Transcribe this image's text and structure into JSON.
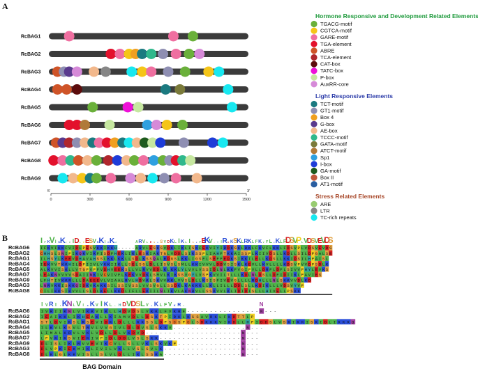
{
  "panel_a_label": "A",
  "panel_b_label": "B",
  "axis": {
    "start_label": "5'",
    "end_label": "3'",
    "ticks": [
      "0",
      "300",
      "600",
      "900",
      "1200",
      "1500"
    ],
    "tick_values": [
      0,
      300,
      600,
      900,
      1200,
      1500
    ],
    "max": 1500
  },
  "element_colors": {
    "TGACG-motif": "#6ab03a",
    "CGTCA-motif": "#f5c518",
    "GARE-motif": "#ef6fa0",
    "TGA-element": "#e3112c",
    "ABRE": "#cf5428",
    "TCA-element": "#b0272d",
    "CAT-box": "#5c0c0c",
    "TATC-box": "#ee10d8",
    "P-box": "#c6e7a0",
    "AuxRR-core": "#d68ad8",
    "TCT-motif": "#1b7a80",
    "GT1-motif": "#8e8eb2",
    "Box 4": "#f0a020",
    "G-box": "#5a3a8e",
    "AE-box": "#f2b88c",
    "TCCC-motif": "#30b88c",
    "GATA-motif": "#7a7a3a",
    "ATCT-motif": "#b07a3a",
    "Sp1": "#2ea0e0",
    "I-box": "#1e3cd8",
    "GA-motif": "#1e5a1e",
    "Box II": "#c0573a",
    "AT1-motif": "#2a5ea0",
    "ARE": "#98cc70",
    "LTR": "#868686",
    "TC-rich repeats": "#18e8f0"
  },
  "legend": [
    {
      "title": "Hormone Responsive and Development Related Elements",
      "title_color": "#1e9a3c",
      "items": [
        "TGACG-motif",
        "CGTCA-motif",
        "GARE-motif",
        "TGA-element",
        "ABRE",
        "TCA-element",
        "CAT-box",
        "TATC-box",
        "P-box",
        "AuxRR-core"
      ]
    },
    {
      "title": "Light Responsive Elements",
      "title_color": "#2a3aa8",
      "items": [
        "TCT-motif",
        "GT1-motif",
        "Box 4",
        "G-box",
        "AE-box",
        "TCCC-motif",
        "GATA-motif",
        "ATCT-motif",
        "Sp1",
        "I-box",
        "GA-motif",
        "Box II",
        "AT1-motif"
      ]
    },
    {
      "title": "Stress Related Elements",
      "title_color": "#a8482a",
      "items": [
        "ARE",
        "LTR",
        "TC-rich repeats"
      ]
    }
  ],
  "genes": [
    {
      "name": "RcBAG1",
      "elements": [
        [
          140,
          "GARE-motif"
        ],
        [
          940,
          "GARE-motif"
        ],
        [
          1090,
          "TGACG-motif"
        ]
      ]
    },
    {
      "name": "RcBAG2",
      "elements": [
        [
          460,
          "TGA-element"
        ],
        [
          530,
          "GARE-motif"
        ],
        [
          600,
          "CGTCA-motif"
        ],
        [
          650,
          "Box 4"
        ],
        [
          700,
          "TCT-motif"
        ],
        [
          770,
          "TCCC-motif"
        ],
        [
          860,
          "GT1-motif"
        ],
        [
          960,
          "GARE-motif"
        ],
        [
          1060,
          "TGACG-motif"
        ],
        [
          1140,
          "AuxRR-core"
        ]
      ]
    },
    {
      "name": "RcBAG3",
      "elements": [
        [
          50,
          "ABRE"
        ],
        [
          100,
          "GT1-motif"
        ],
        [
          140,
          "G-box"
        ],
        [
          200,
          "AuxRR-core"
        ],
        [
          330,
          "AE-box"
        ],
        [
          420,
          "LTR"
        ],
        [
          620,
          "TC-rich repeats"
        ],
        [
          700,
          "CGTCA-motif"
        ],
        [
          770,
          "GARE-motif"
        ],
        [
          900,
          "GT1-motif"
        ],
        [
          1030,
          "TGACG-motif"
        ],
        [
          1210,
          "CGTCA-motif"
        ],
        [
          1290,
          "TC-rich repeats"
        ]
      ]
    },
    {
      "name": "RcBAG4",
      "elements": [
        [
          50,
          "ABRE"
        ],
        [
          120,
          "ABRE"
        ],
        [
          200,
          "CAT-box"
        ],
        [
          880,
          "TCT-motif"
        ],
        [
          990,
          "GATA-motif"
        ],
        [
          1360,
          "TC-rich repeats"
        ]
      ]
    },
    {
      "name": "RcBAG5",
      "elements": [
        [
          320,
          "TGACG-motif"
        ],
        [
          590,
          "TATC-box"
        ],
        [
          670,
          "P-box"
        ],
        [
          1390,
          "TC-rich repeats"
        ]
      ]
    },
    {
      "name": "RcBAG6",
      "elements": [
        [
          140,
          "TGA-element"
        ],
        [
          200,
          "TGA-element"
        ],
        [
          260,
          "ATCT-motif"
        ],
        [
          450,
          "P-box"
        ],
        [
          740,
          "Sp1"
        ],
        [
          810,
          "AuxRR-core"
        ],
        [
          890,
          "CGTCA-motif"
        ],
        [
          1010,
          "TGACG-motif"
        ]
      ]
    },
    {
      "name": "RcBAG7",
      "elements": [
        [
          40,
          "ABRE"
        ],
        [
          90,
          "G-box"
        ],
        [
          140,
          "TCA-element"
        ],
        [
          200,
          "GT1-motif"
        ],
        [
          260,
          "AE-box"
        ],
        [
          320,
          "TCT-motif"
        ],
        [
          370,
          "GARE-motif"
        ],
        [
          430,
          "TGA-element"
        ],
        [
          490,
          "Box 4"
        ],
        [
          550,
          "TCT-motif"
        ],
        [
          600,
          "TC-rich repeats"
        ],
        [
          660,
          "AE-box"
        ],
        [
          720,
          "GA-motif"
        ],
        [
          780,
          "P-box"
        ],
        [
          840,
          "I-box"
        ],
        [
          1020,
          "GT1-motif"
        ],
        [
          1240,
          "I-box"
        ],
        [
          1320,
          "TC-rich repeats"
        ]
      ]
    },
    {
      "name": "RcBAG8",
      "elements": [
        [
          20,
          "TGA-element"
        ],
        [
          90,
          "GARE-motif"
        ],
        [
          150,
          "TCCC-motif"
        ],
        [
          210,
          "ABRE"
        ],
        [
          280,
          "AE-box"
        ],
        [
          350,
          "TGACG-motif"
        ],
        [
          440,
          "TCA-element"
        ],
        [
          510,
          "I-box"
        ],
        [
          580,
          "AE-box"
        ],
        [
          640,
          "TGACG-motif"
        ],
        [
          710,
          "GARE-motif"
        ],
        [
          790,
          "Sp1"
        ],
        [
          860,
          "TGACG-motif"
        ],
        [
          910,
          "GT1-motif"
        ],
        [
          960,
          "TGA-element"
        ],
        [
          1010,
          "TCCC-motif"
        ],
        [
          1070,
          "P-box"
        ]
      ]
    },
    {
      "name": "RcBAG9",
      "elements": [
        [
          90,
          "TC-rich repeats"
        ],
        [
          170,
          "AE-box"
        ],
        [
          240,
          "CGTCA-motif"
        ],
        [
          300,
          "TCT-motif"
        ],
        [
          350,
          "TGACG-motif"
        ],
        [
          460,
          "GARE-motif"
        ],
        [
          610,
          "AuxRR-core"
        ],
        [
          690,
          "AE-box"
        ],
        [
          780,
          "TC-rich repeats"
        ],
        [
          870,
          "GT1-motif"
        ],
        [
          960,
          "GARE-motif"
        ],
        [
          1120,
          "AE-box"
        ]
      ]
    }
  ],
  "alignment_block1": {
    "labels": [
      "RcBAG6",
      "RcBAG2",
      "RcBAG1",
      "RcBAG4",
      "RcBAG5",
      "RcBAG7",
      "RcBAG9",
      "RcBAG3",
      "RcBAG8"
    ],
    "rows": [
      "IFKVIKKFVIDLPESVKKIKKH-----ARVLESKSVDKLIKLISKFEKVIYIRDKSKLRKLFKVFLKKLFDSVPLVDSVEVDS",
      "CHHSLSNIPIKQKVIKFISDFHEKLIKLESKIAKTGLVDDLSIKSSPLIAHFTKKAISSPLKIIVDSLLKDLLSILDPGALSE",
      "ILHSYLKEEVDHAVAHSSLKKLKKLLSDLKSSQALRDGSLKKLIGSFLSEFFEDKSIKKILELLKDSLLKKIDSILHPAISL",
      "IEKVVTKKHILDPIIVLYKKIIKLLSELSGLDLLISVSLSMLLKKIVVVLDDVSISKLKEVLLKVLLLLKDSVPVVDPSDLK",
      "ALKVVISKLLVTGPVPFVDHVEEKSLLVLRVVEDLKLKKLYLVVLVSSIDLNLKKFVGIPVLLDRFLDFLSIVVPHYLEVKS",
      "LEAKNVVVVSDAIINKIVCVIVFLKEKVVDKLSMVLKIKSSVGYLVSPKVVILTLLLKDLNLDSLLDFIDIIKLPAVIES",
      "LFHTIVKKRLLLDAEEEVLVIAALRVLHDVKLSKVVKKLVVSLDLLKSISFIVEVGLLLLRDHLLLNLSKKVVDLKD",
      "LNRVKKISKKQIDKVKAKKSILSSIVSSLVVSVGLLSSDKLKAKKKLLKLLILLLDDLSLLKDIKLLLVDSVYVP",
      "CILIKKSIKVVLLSLDLKELLKKDLIFLLEKIILNLIKVLAKNRVLLSSKVVLKLIDIDISLLLHIVELLPSKK"
    ]
  },
  "alignment_block2": {
    "labels": [
      "RcBAG6",
      "RcBAG2",
      "RcBAG1",
      "RcBAG4",
      "RcBAG5",
      "RcBAG7",
      "RcBAG9",
      "RcBAG3",
      "RcBAG8"
    ],
    "rows": [
      "IVRIIKNLVIKKVIKLLHDVDSLVKKLFVKRF----------------N---",
      "IEAIKKLIKHEAKLLKIAMVDLLDSKTPIRKLKSSAVRKLFKDTTLP",
      "STLDVIKSLRSEVIDKLDLLLKKSSLDPSCSPCLSDKKKVIKDLLHPIDDSLVSKIKKISKIDLIKKKQ",
      "ILKVLKSVLTRVLVVGIVLDLDVSLSKKV----------------N---",
      "LIMALKRVLVKLVDLLDLVKDVD---------------------N---",
      "LPVKIKSVIEKIVPIDLDDLVSLSKK------------------N---",
      "DLISLIKLRVVEVIKCVLLSLLVKLSKVKP--------------N---",
      "DLVPKIEKMIKLIVILVKLLVSLSVLK-----------------N---",
      "DLKLGLKKVISLLSLVLDLLIKLSSKA-----------------N---"
    ]
  },
  "bag_domain_label": "BAG Domain"
}
